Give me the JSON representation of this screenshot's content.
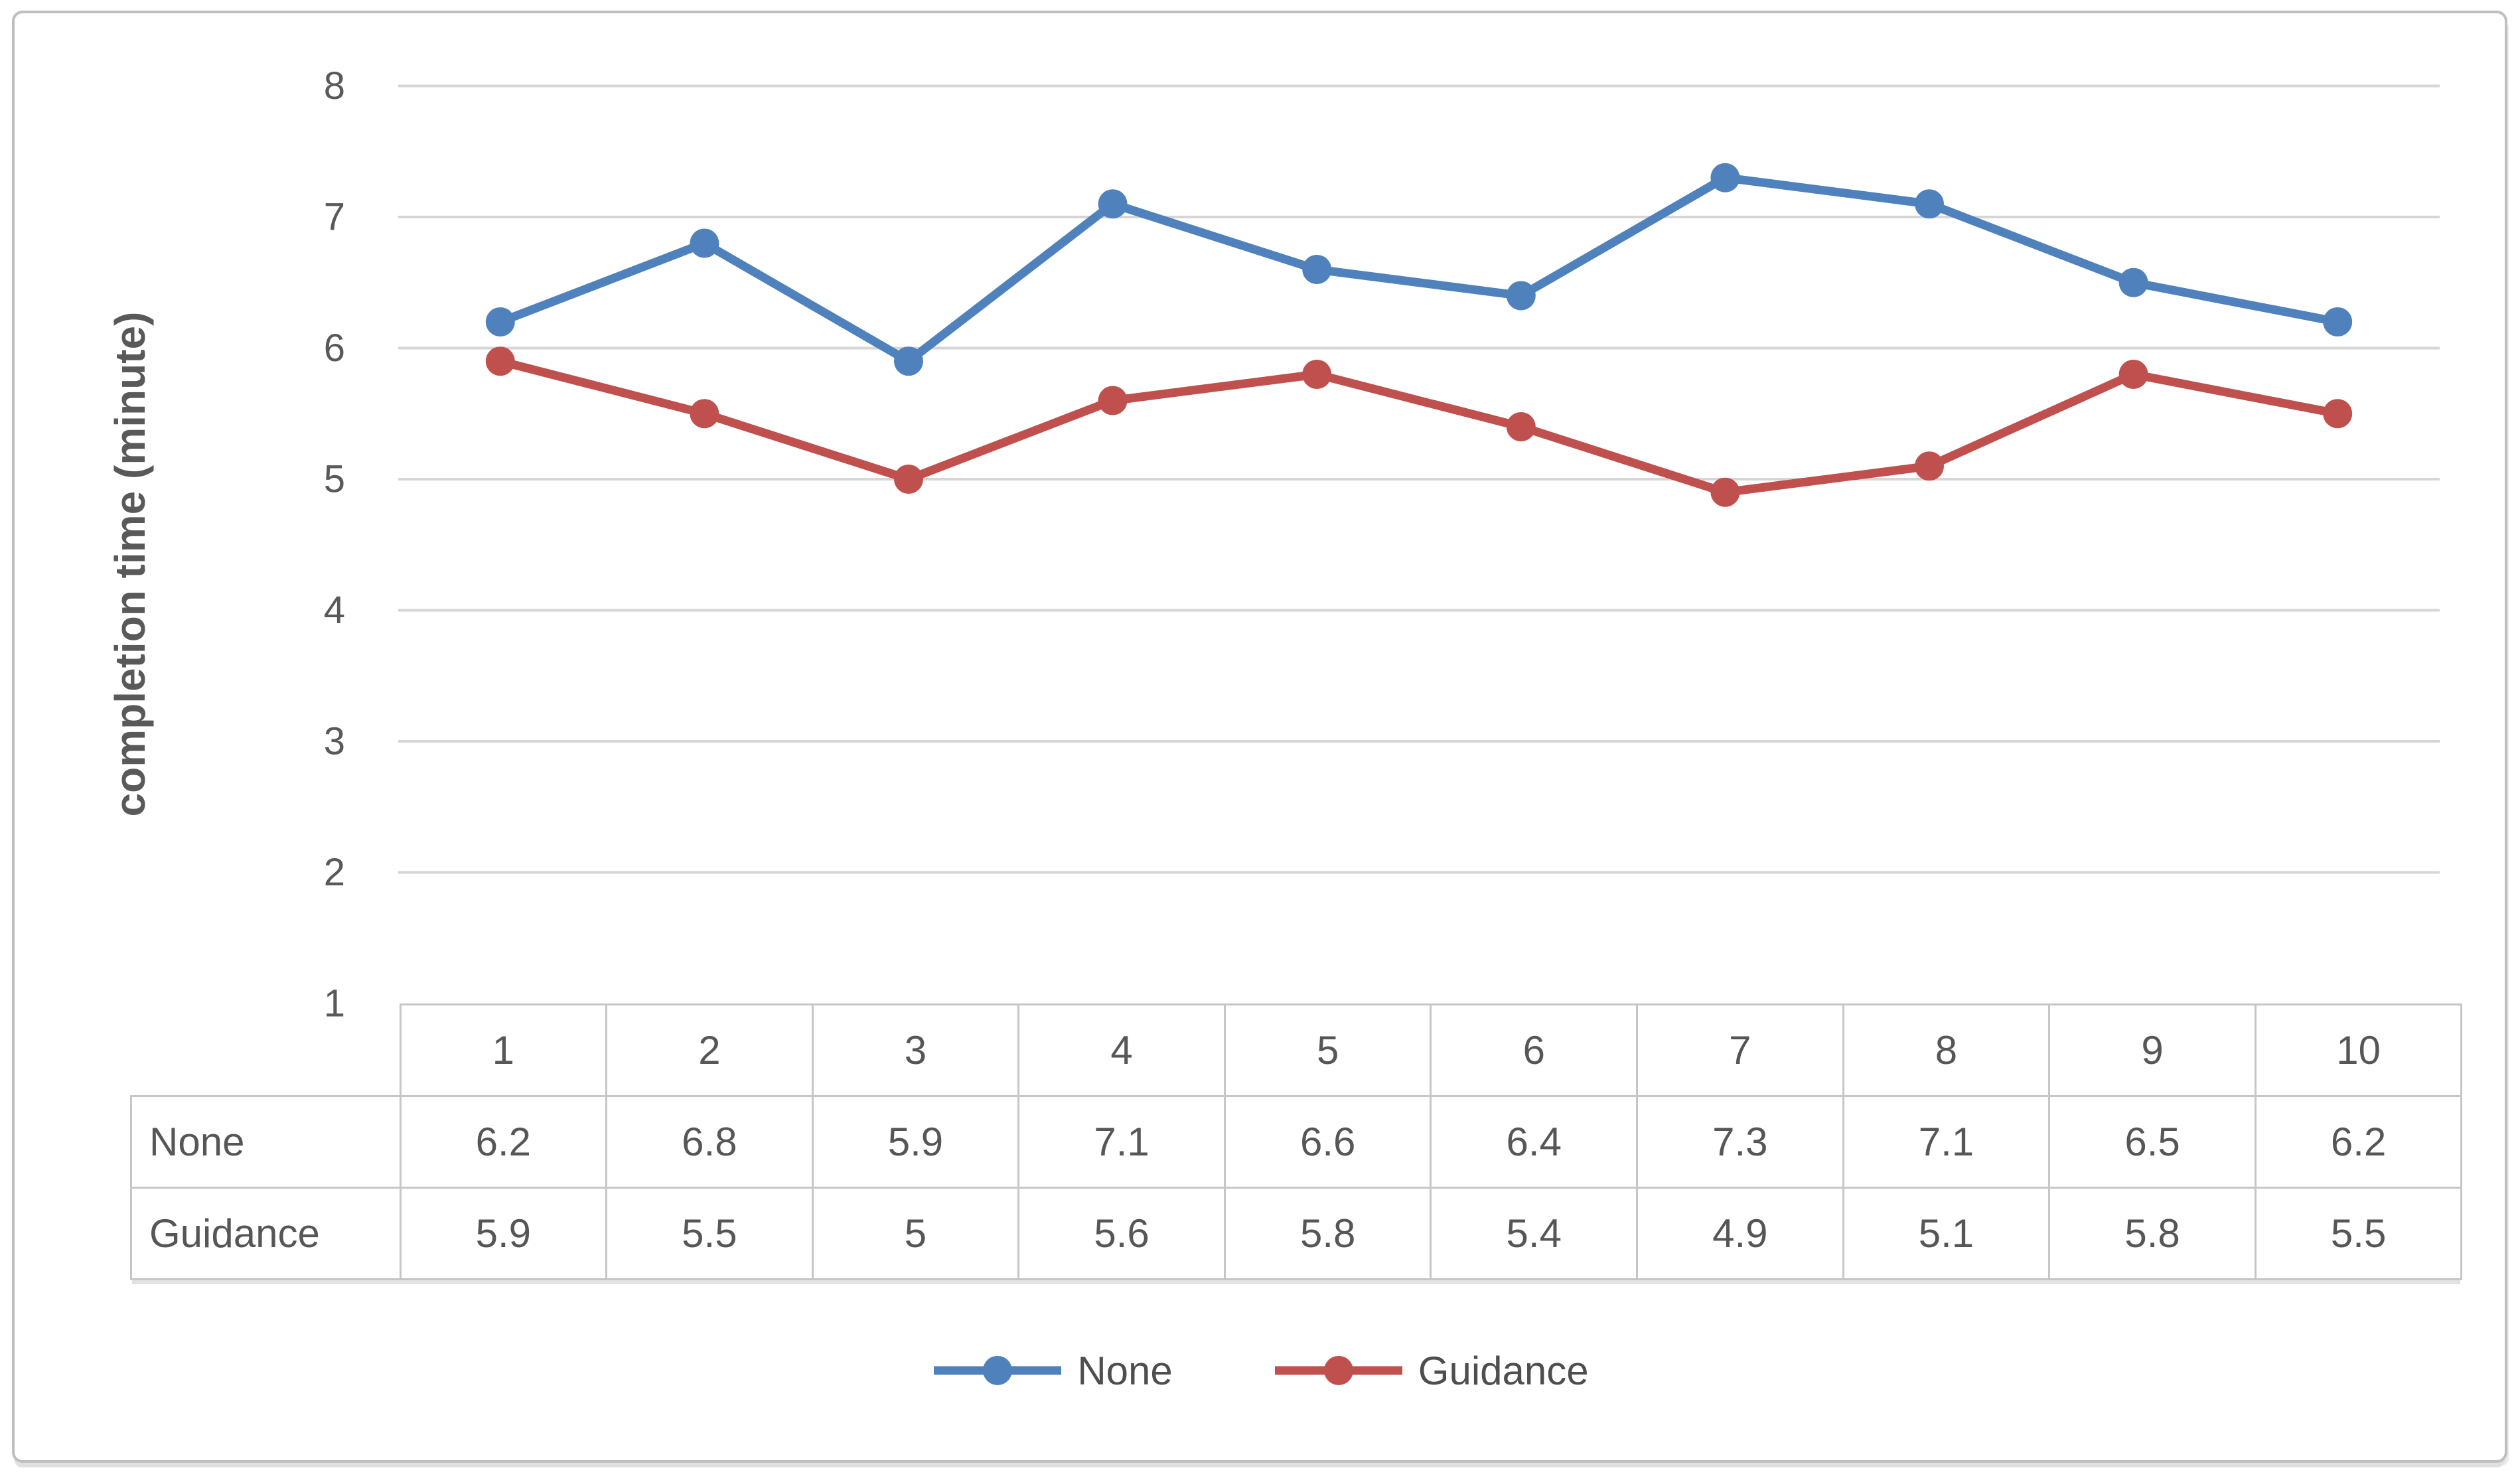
{
  "figure": {
    "background": "#ffffff",
    "frame_border_color": "#BFBFBF"
  },
  "colors": {
    "series_none": "#4F81BD",
    "series_guidance": "#C0504D",
    "gridline": "#D6D6D6",
    "table_border": "#C6C6C6",
    "axis_text": "#595959",
    "table_text": "#565656",
    "legend_text": "#4E4E4E"
  },
  "chart_data": {
    "type": "line",
    "title": "",
    "xlabel": "",
    "ylabel": "completion time (minute)",
    "ylim": [
      1,
      8
    ],
    "yticks": [
      1,
      2,
      3,
      4,
      5,
      6,
      7,
      8
    ],
    "grid": "horizontal",
    "legend_position": "bottom",
    "data_table_shown": true,
    "categories": [
      "1",
      "2",
      "3",
      "4",
      "5",
      "6",
      "7",
      "8",
      "9",
      "10"
    ],
    "series": [
      {
        "name": "None",
        "color": "#4F81BD",
        "values": [
          6.2,
          6.8,
          5.9,
          7.1,
          6.6,
          6.4,
          7.3,
          7.1,
          6.5,
          6.2
        ]
      },
      {
        "name": "Guidance",
        "color": "#C0504D",
        "values": [
          5.9,
          5.5,
          5,
          5.6,
          5.8,
          5.4,
          4.9,
          5.1,
          5.8,
          5.5
        ]
      }
    ]
  }
}
